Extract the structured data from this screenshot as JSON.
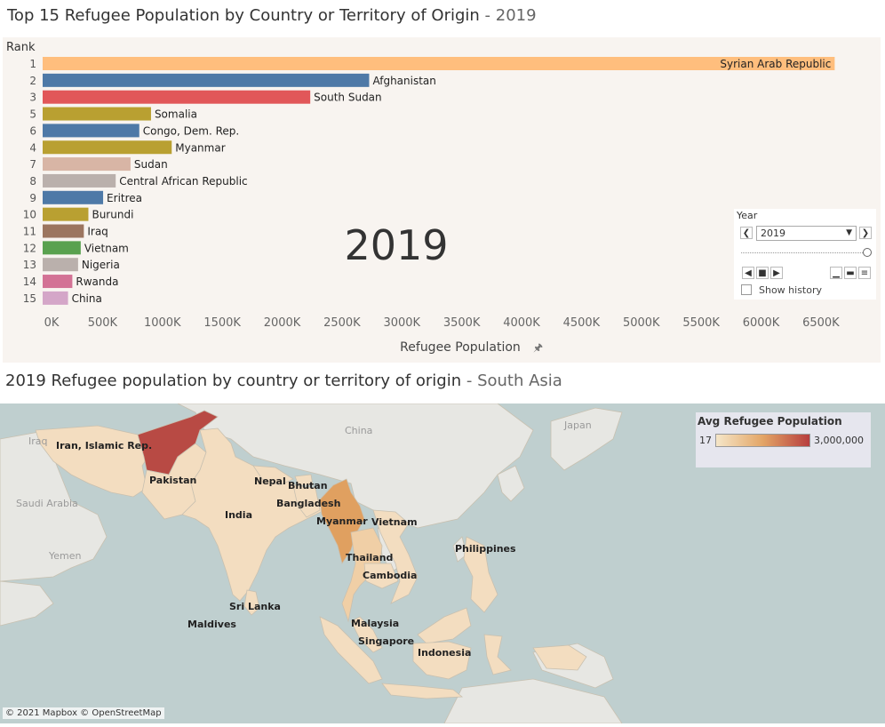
{
  "title1": {
    "main": "Top 15 Refugee Population by Country or Territory of Origin",
    "sep": " - ",
    "sub": "2019"
  },
  "title2": {
    "main": "2019 Refugee population by country or territory of origin",
    "sep": " - ",
    "sub": "South Asia"
  },
  "chart_data": {
    "type": "bar",
    "orientation": "horizontal",
    "title": "Top 15 Refugee Population by Country or Territory of Origin - 2019",
    "ylabel": "Rank",
    "xlabel": "Refugee Population",
    "watermark": "2019",
    "xlim": [
      0,
      6800
    ],
    "x_unit": "K",
    "x_ticks": [
      0,
      500,
      1000,
      1500,
      2000,
      2500,
      3000,
      3500,
      4000,
      4500,
      5000,
      5500,
      6000,
      6500
    ],
    "x_tick_labels": [
      "0K",
      "500K",
      "1000K",
      "1500K",
      "2000K",
      "2500K",
      "3000K",
      "3500K",
      "4000K",
      "4500K",
      "5000K",
      "5500K",
      "6000K",
      "6500K"
    ],
    "bars": [
      {
        "rank": "1",
        "country": "Syrian Arab Republic",
        "value": 6615,
        "color": "#ffbe7d",
        "label_inside": true
      },
      {
        "rank": "2",
        "country": "Afghanistan",
        "value": 2727,
        "color": "#4e79a7"
      },
      {
        "rank": "3",
        "country": "South Sudan",
        "value": 2235,
        "color": "#e15759"
      },
      {
        "rank": "5",
        "country": "Somalia",
        "value": 905,
        "color": "#b9a031"
      },
      {
        "rank": "6",
        "country": "Congo, Dem. Rep.",
        "value": 807,
        "color": "#4e79a7"
      },
      {
        "rank": "4",
        "country": "Myanmar",
        "value": 1078,
        "color": "#b9a031"
      },
      {
        "rank": "7",
        "country": "Sudan",
        "value": 734,
        "color": "#d8b5a5"
      },
      {
        "rank": "8",
        "country": "Central African Republic",
        "value": 610,
        "color": "#bab0ac"
      },
      {
        "rank": "9",
        "country": "Eritrea",
        "value": 505,
        "color": "#4e79a7"
      },
      {
        "rank": "10",
        "country": "Burundi",
        "value": 382,
        "color": "#b9a031"
      },
      {
        "rank": "11",
        "country": "Iraq",
        "value": 344,
        "color": "#9c755f"
      },
      {
        "rank": "12",
        "country": "Vietnam",
        "value": 318,
        "color": "#59a14f"
      },
      {
        "rank": "13",
        "country": "Nigeria",
        "value": 296,
        "color": "#bab0ac"
      },
      {
        "rank": "14",
        "country": "Rwanda",
        "value": 248,
        "color": "#d37295"
      },
      {
        "rank": "15",
        "country": "China",
        "value": 212,
        "color": "#d4a6c8"
      }
    ]
  },
  "year_control": {
    "label": "Year",
    "value": "2019",
    "prev_icon": "chevron-left-icon",
    "next_icon": "chevron-right-icon",
    "show_history": "Show history"
  },
  "map": {
    "legend_title": "Avg Refugee Population",
    "legend_min": "17",
    "legend_max": "3,000,000",
    "attribution": "© 2021 Mapbox © OpenStreetMap",
    "colors": {
      "water": "#bfcfcf",
      "land": "#e7e7e3",
      "low": "#f3ddc0",
      "mid": "#f0cfa6",
      "myanmar": "#e0a060",
      "afghanistan": "#b84a44"
    },
    "labels": [
      {
        "text": "Iran, Islamic Rep.",
        "bold": true
      },
      {
        "text": "Pakistan",
        "bold": true
      },
      {
        "text": "Nepal",
        "bold": true
      },
      {
        "text": "Bhutan",
        "bold": true
      },
      {
        "text": "Bangladesh",
        "bold": true
      },
      {
        "text": "India",
        "bold": true
      },
      {
        "text": "Myanmar",
        "bold": true
      },
      {
        "text": "Vietnam",
        "bold": true
      },
      {
        "text": "Thailand",
        "bold": true
      },
      {
        "text": "Cambodia",
        "bold": true
      },
      {
        "text": "Philippines",
        "bold": true
      },
      {
        "text": "Sri Lanka",
        "bold": true
      },
      {
        "text": "Maldives",
        "bold": true
      },
      {
        "text": "Malaysia",
        "bold": true
      },
      {
        "text": "Singapore",
        "bold": true
      },
      {
        "text": "Indonesia",
        "bold": true
      },
      {
        "text": "China",
        "bold": false
      },
      {
        "text": "Japan",
        "bold": false
      },
      {
        "text": "Iraq",
        "bold": false
      },
      {
        "text": "Saudi Arabia",
        "bold": false
      },
      {
        "text": "Yemen",
        "bold": false
      }
    ]
  }
}
